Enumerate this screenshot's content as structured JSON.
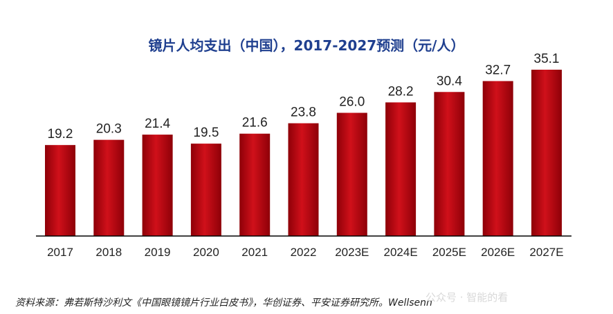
{
  "chart_data": {
    "type": "bar",
    "title": "镜片人均支出（中国），2017-2027预测（元/人）",
    "categories": [
      "2017",
      "2018",
      "2019",
      "2020",
      "2021",
      "2022",
      "2023E",
      "2024E",
      "2025E",
      "2026E",
      "2027E"
    ],
    "values": [
      19.2,
      20.3,
      21.4,
      19.5,
      21.6,
      23.8,
      26.0,
      28.2,
      30.4,
      32.7,
      35.1
    ],
    "value_labels": [
      "19.2",
      "20.3",
      "21.4",
      "19.5",
      "21.6",
      "23.8",
      "26.0",
      "28.2",
      "30.4",
      "32.7",
      "35.1"
    ],
    "xlabel": "",
    "ylabel": "",
    "y_axis_visible": false,
    "grid": false,
    "legend": "none",
    "ylim": [
      0,
      35.1
    ]
  },
  "source_note": "资料来源：弗若斯特沙利文《中国眼镜镜片行业白皮书》，华创证券、平安证券研究所。Wellsenn",
  "watermark": "公众号 · 智能的看",
  "colors": {
    "bar_top": "#d0101a",
    "bar_bottom": "#8e0008",
    "title": "#1f3f8f"
  }
}
